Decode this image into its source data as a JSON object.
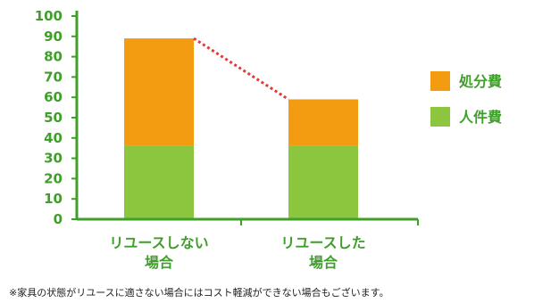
{
  "chart_data": {
    "type": "bar",
    "stacked": true,
    "categories": [
      [
        "リユースしない",
        "場合"
      ],
      [
        "リユースした",
        "場合"
      ]
    ],
    "series": [
      {
        "name": "人件費",
        "color": "#8cc63f",
        "values": [
          36,
          36
        ]
      },
      {
        "name": "処分費",
        "color": "#f39c12",
        "values": [
          53,
          23
        ]
      }
    ],
    "ylim": [
      0,
      100
    ],
    "yticks": [
      0,
      10,
      20,
      30,
      40,
      50,
      60,
      70,
      80,
      90,
      100
    ],
    "axis_color": "#3f9f2a",
    "connector_color": "#e53935",
    "legend_position": "right"
  },
  "footnote": "※家具の状態がリユースに適さない場合にはコスト軽減ができない場合もございます。"
}
